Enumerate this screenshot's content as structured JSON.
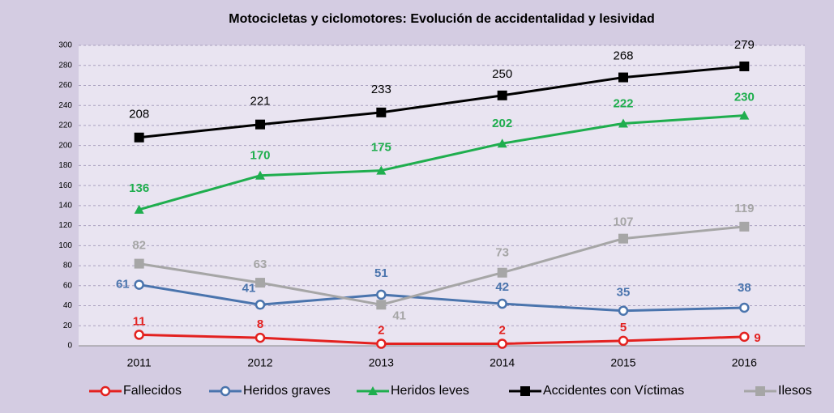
{
  "chart_data": {
    "type": "line",
    "title": "Motocicletas y ciclomotores: Evolución de accidentalidad y lesividad",
    "categories": [
      "2011",
      "2012",
      "2013",
      "2014",
      "2015",
      "2016"
    ],
    "series": [
      {
        "name": "Fallecidos",
        "color": "#e3211f",
        "marker": "circle",
        "values": [
          11,
          8,
          2,
          2,
          5,
          9
        ]
      },
      {
        "name": "Heridos graves",
        "color": "#4a74ad",
        "marker": "circle",
        "values": [
          61,
          41,
          51,
          42,
          35,
          38
        ]
      },
      {
        "name": "Heridos leves",
        "color": "#1fae4e",
        "marker": "triangle",
        "values": [
          136,
          170,
          175,
          202,
          222,
          230
        ]
      },
      {
        "name": "Accidentes con Víctimas",
        "color": "#000000",
        "marker": "square",
        "values": [
          208,
          221,
          233,
          250,
          268,
          279
        ]
      },
      {
        "name": "Ilesos",
        "color": "#a6a6a6",
        "marker": "square",
        "values": [
          82,
          63,
          41,
          73,
          107,
          119
        ]
      }
    ],
    "ylim": [
      0,
      300
    ],
    "yticks": [
      0,
      20,
      40,
      60,
      80,
      100,
      120,
      140,
      160,
      180,
      200,
      220,
      240,
      260,
      280,
      300
    ],
    "grid": true,
    "legend": "bottom"
  }
}
